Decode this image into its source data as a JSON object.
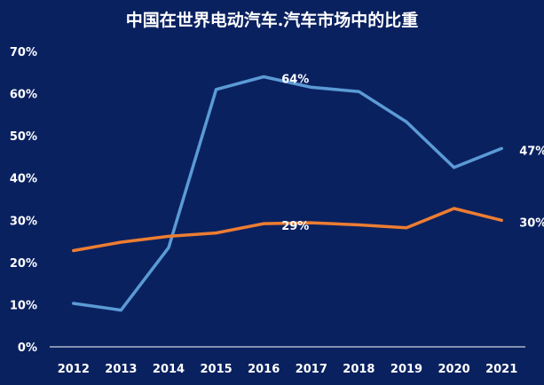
{
  "chart_data": {
    "type": "line",
    "title": "中国在世界电动汽车.汽车市场中的比重",
    "xlabel": "",
    "ylabel": "",
    "x": [
      "2012",
      "2013",
      "2014",
      "2015",
      "2016",
      "2017",
      "2018",
      "2019",
      "2020",
      "2021"
    ],
    "ylim": [
      0,
      70
    ],
    "y_ticks": [
      "0%",
      "10%",
      "20%",
      "30%",
      "40%",
      "50%",
      "60%",
      "70%"
    ],
    "grid": false,
    "series": [
      {
        "color": "#5b9bd5",
        "values": [
          10.3,
          8.7,
          23.5,
          61,
          64,
          61.5,
          60.5,
          53.3,
          42.5,
          47
        ]
      },
      {
        "color": "#ed7d31",
        "values": [
          22.8,
          24.8,
          26.2,
          27,
          29.2,
          29.4,
          28.9,
          28.2,
          32.8,
          30
        ]
      }
    ],
    "annotations": [
      {
        "series": 0,
        "index": 4,
        "text": "64%"
      },
      {
        "series": 0,
        "index": 9,
        "text": "47%"
      },
      {
        "series": 1,
        "index": 4,
        "text": "29%"
      },
      {
        "series": 1,
        "index": 9,
        "text": "30%"
      }
    ]
  }
}
